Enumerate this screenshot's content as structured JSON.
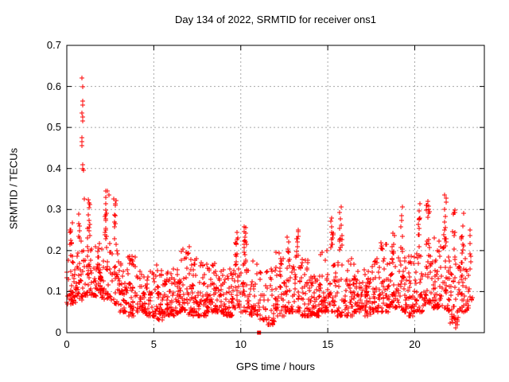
{
  "chart_data": {
    "type": "scatter",
    "title": "Day 134 of 2022, SRMTID for receiver ons1",
    "xlabel": "GPS time / hours",
    "ylabel": "SRMTID / TECUs",
    "xlim": [
      0,
      24
    ],
    "ylim": [
      0,
      0.7
    ],
    "x_ticks": {
      "values": [
        0,
        5,
        10,
        15,
        20
      ],
      "labels": [
        "0",
        "5",
        "10",
        "15",
        "20"
      ]
    },
    "y_ticks": {
      "values": [
        0,
        0.1,
        0.2,
        0.3,
        0.4,
        0.5,
        0.6,
        0.7
      ],
      "labels": [
        "0",
        "0.1",
        "0.2",
        "0.3",
        "0.4",
        "0.5",
        "0.6",
        "0.7"
      ]
    },
    "grid": {
      "x_lines": [
        5,
        10,
        15,
        20
      ],
      "y_lines": [
        0.1,
        0.2,
        0.3,
        0.4,
        0.5,
        0.6
      ],
      "style": "dashed",
      "color": "#a8a8a8"
    },
    "marker": {
      "shape": "plus",
      "color": "#ff0000",
      "size": 7
    },
    "series_name": "SRMTID",
    "description": "Dense band of red plus markers between ~0.05 and ~0.2 TECUs across 0-23.3 h; spike cluster to 0.62 near hour 0.9; secondary peaks ~0.35 at h2.4, ~0.26 at h10 and h13, ~0.31 at h15.5 and h19, ~0.34 at h20.5-22; sparser around h11; lone filled red square at (11, 0).",
    "band_bins": [
      [
        0.0,
        0.07,
        0.27,
        45
      ],
      [
        0.5,
        0.08,
        0.3,
        45
      ],
      [
        1.0,
        0.09,
        0.33,
        45
      ],
      [
        1.5,
        0.09,
        0.22,
        45
      ],
      [
        2.0,
        0.08,
        0.35,
        45
      ],
      [
        2.5,
        0.07,
        0.33,
        40
      ],
      [
        3.0,
        0.05,
        0.17,
        40
      ],
      [
        3.5,
        0.04,
        0.19,
        40
      ],
      [
        4.0,
        0.05,
        0.16,
        40
      ],
      [
        4.5,
        0.04,
        0.15,
        40
      ],
      [
        5.0,
        0.03,
        0.17,
        40
      ],
      [
        5.5,
        0.04,
        0.15,
        40
      ],
      [
        6.0,
        0.04,
        0.16,
        40
      ],
      [
        6.5,
        0.05,
        0.21,
        40
      ],
      [
        7.0,
        0.04,
        0.2,
        40
      ],
      [
        7.5,
        0.04,
        0.18,
        40
      ],
      [
        8.0,
        0.05,
        0.17,
        40
      ],
      [
        8.5,
        0.05,
        0.15,
        40
      ],
      [
        9.0,
        0.04,
        0.16,
        40
      ],
      [
        9.5,
        0.06,
        0.25,
        42
      ],
      [
        10.0,
        0.05,
        0.26,
        45
      ],
      [
        10.5,
        0.04,
        0.18,
        35
      ],
      [
        11.0,
        0.03,
        0.15,
        24
      ],
      [
        11.5,
        0.02,
        0.16,
        30
      ],
      [
        12.0,
        0.04,
        0.2,
        40
      ],
      [
        12.5,
        0.05,
        0.24,
        40
      ],
      [
        13.0,
        0.05,
        0.26,
        42
      ],
      [
        13.5,
        0.04,
        0.18,
        40
      ],
      [
        14.0,
        0.04,
        0.16,
        40
      ],
      [
        14.5,
        0.05,
        0.2,
        40
      ],
      [
        15.0,
        0.05,
        0.28,
        42
      ],
      [
        15.5,
        0.04,
        0.31,
        40
      ],
      [
        16.0,
        0.04,
        0.18,
        40
      ],
      [
        16.5,
        0.05,
        0.15,
        40
      ],
      [
        17.0,
        0.04,
        0.16,
        40
      ],
      [
        17.5,
        0.05,
        0.18,
        40
      ],
      [
        18.0,
        0.05,
        0.22,
        42
      ],
      [
        18.5,
        0.06,
        0.26,
        44
      ],
      [
        19.0,
        0.05,
        0.31,
        44
      ],
      [
        19.5,
        0.04,
        0.2,
        40
      ],
      [
        20.0,
        0.05,
        0.32,
        42
      ],
      [
        20.5,
        0.07,
        0.34,
        46
      ],
      [
        21.0,
        0.06,
        0.24,
        46
      ],
      [
        21.5,
        0.05,
        0.35,
        48
      ],
      [
        22.0,
        0.02,
        0.3,
        46
      ],
      [
        22.5,
        0.05,
        0.3,
        46
      ],
      [
        23.0,
        0.06,
        0.26,
        20,
        0.4
      ]
    ],
    "outlier_points": [
      [
        0.88,
        0.62
      ],
      [
        0.9,
        0.6
      ],
      [
        0.92,
        0.565
      ],
      [
        0.9,
        0.555
      ],
      [
        0.89,
        0.535
      ],
      [
        0.91,
        0.525
      ],
      [
        0.9,
        0.515
      ],
      [
        0.86,
        0.475
      ],
      [
        0.88,
        0.465
      ],
      [
        0.87,
        0.455
      ],
      [
        0.93,
        0.41
      ],
      [
        0.92,
        0.4
      ],
      [
        0.94,
        0.395
      ],
      [
        1.02,
        0.325
      ],
      [
        2.35,
        0.345
      ],
      [
        2.42,
        0.335
      ],
      [
        7.02,
        0.21
      ],
      [
        20.3,
        0.315
      ],
      [
        11.85,
        0.02
      ],
      [
        22.35,
        0.012
      ]
    ],
    "square_points": [
      [
        11.05,
        0.0
      ]
    ],
    "colors": {
      "marker": "#ff0000",
      "axis": "#000000",
      "grid": "#a8a8a8",
      "background": "#ffffff"
    }
  }
}
